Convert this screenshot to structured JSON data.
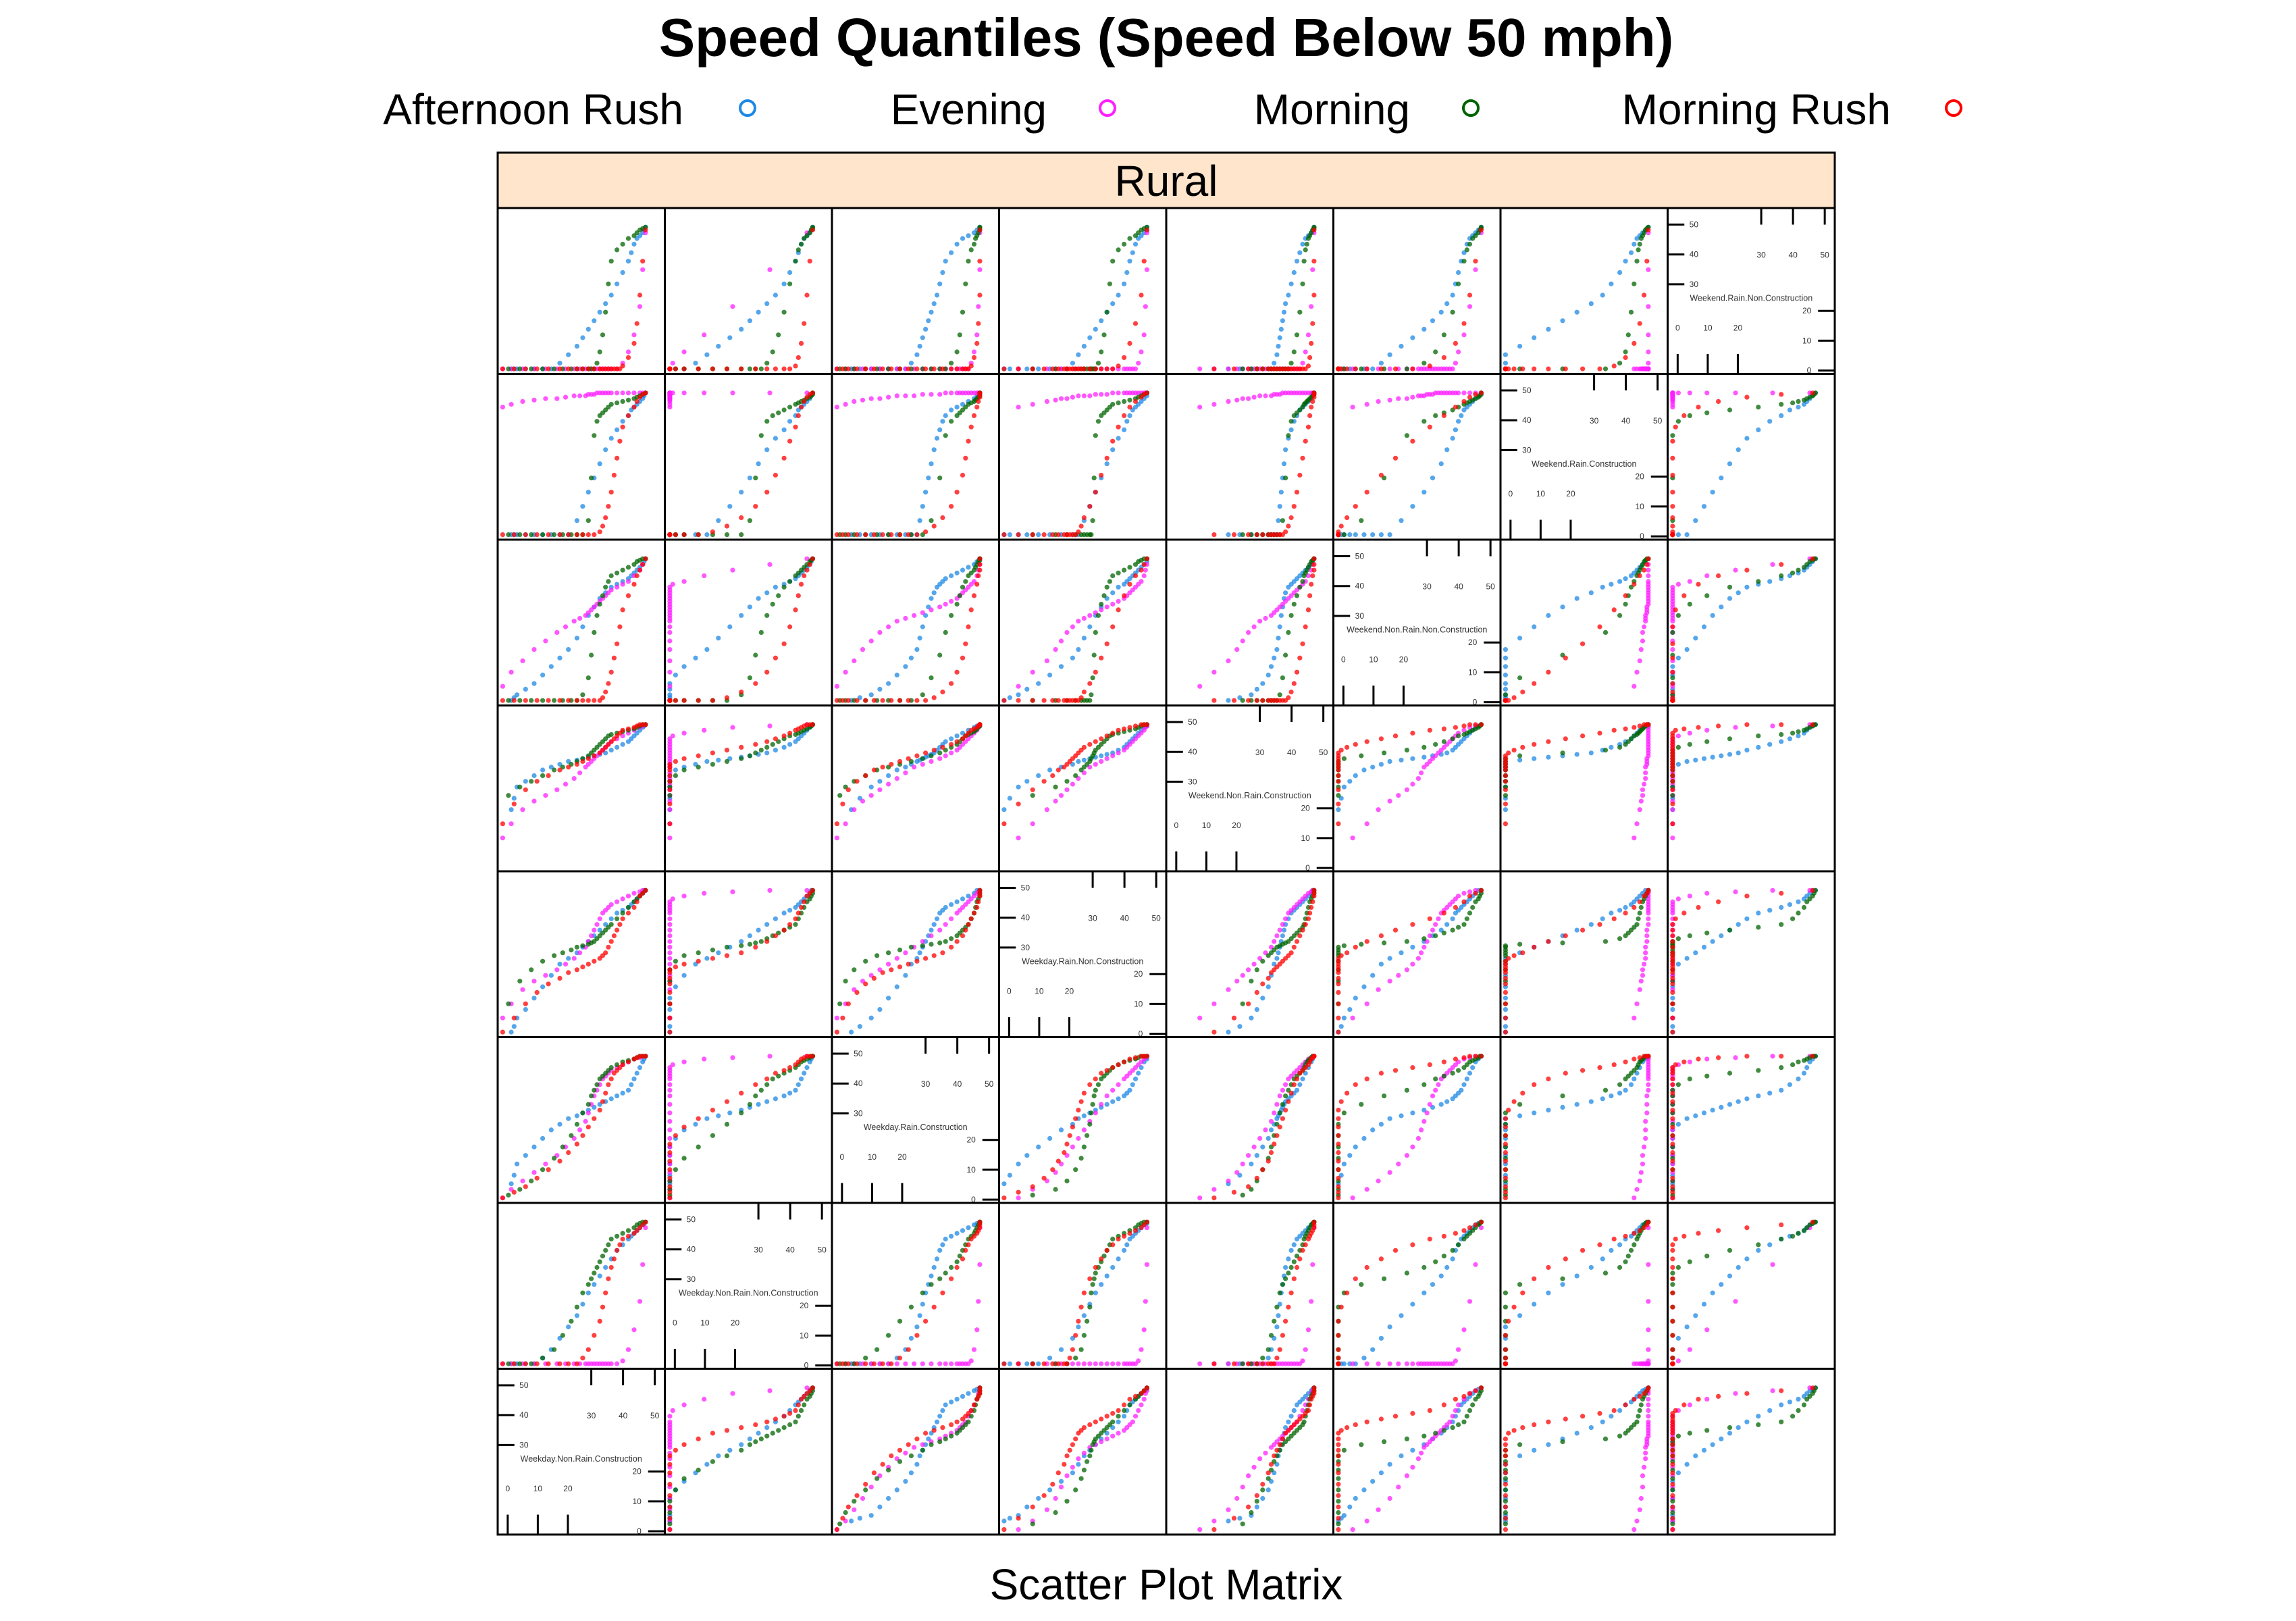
{
  "chart_data": {
    "type": "scatter",
    "title": "Speed Quantiles (Speed Below 50 mph)",
    "xlabel": "Scatter Plot Matrix",
    "strip_label": "Rural",
    "legend_placement": "top",
    "axis_range": [
      0,
      55
    ],
    "diag_ticks": [
      {
        "label": "50",
        "value": 50
      },
      {
        "label": "40",
        "value": 40
      },
      {
        "label": "30",
        "value": 30
      },
      {
        "label": "20",
        "value": 20
      },
      {
        "label": "10",
        "value": 10
      },
      {
        "label": "0",
        "value": 0
      }
    ],
    "variables": [
      "Weekday.Non.Rain.Construction",
      "Weekday.Non.Rain.Non.Construction",
      "Weekday.Rain.Construction",
      "Weekday.Rain.Non.Construction",
      "Weekend.Non.Rain.Construction",
      "Weekend.Non.Rain.Non.Construction",
      "Weekend.Rain.Construction",
      "Weekend.Rain.Non.Construction"
    ],
    "series": [
      {
        "name": "Afternoon Rush",
        "color": "#1e88e5"
      },
      {
        "name": "Evening",
        "color": "#ff1fff"
      },
      {
        "name": "Morning",
        "color": "#006400"
      },
      {
        "name": "Morning Rush",
        "color": "#ff0000"
      }
    ],
    "quantile_probs": [
      0.01,
      0.04,
      0.08,
      0.12,
      0.16,
      0.2,
      0.24,
      0.28,
      0.32,
      0.36,
      0.4,
      0.44,
      0.48,
      0.52,
      0.56,
      0.6,
      0.64,
      0.68,
      0.72,
      0.76,
      0.8,
      0.84,
      0.88,
      0.92,
      0.96,
      0.99
    ],
    "quantiles": {
      "Afternoon Rush": [
        [
          3,
          4,
          5,
          8,
          11,
          14,
          17,
          20,
          23,
          26,
          28,
          30,
          32,
          34,
          36,
          38,
          40,
          42,
          44,
          45,
          46,
          47,
          48,
          49,
          49.5,
          50
        ],
        [
          0,
          0,
          0,
          0,
          0,
          2,
          5,
          9,
          13,
          17,
          21,
          25,
          28,
          31,
          34,
          37,
          40,
          42,
          44,
          45,
          46,
          47,
          48,
          49,
          49.5,
          50
        ],
        [
          5,
          8,
          12,
          15,
          18,
          21,
          24,
          26,
          28,
          29,
          30,
          31,
          32,
          33,
          34,
          35,
          36,
          37,
          38,
          40,
          42,
          44,
          46,
          48,
          49,
          50
        ],
        [
          0,
          2,
          5,
          8,
          12,
          16,
          20,
          24,
          26,
          28,
          30,
          32,
          34,
          36,
          38,
          40,
          42,
          43,
          44,
          45,
          46,
          47,
          48,
          49,
          50,
          50
        ],
        [
          20,
          24,
          28,
          30,
          32,
          34,
          35,
          36,
          37,
          37.5,
          38,
          38.5,
          39,
          39.5,
          40,
          41,
          42,
          43,
          44,
          45,
          46,
          47,
          48,
          49,
          49.5,
          50
        ],
        [
          0,
          1,
          2,
          4,
          6,
          9,
          12,
          15,
          18,
          22,
          26,
          30,
          33,
          36,
          38,
          40,
          41,
          42,
          43,
          44,
          45,
          46,
          47,
          48,
          49,
          50
        ],
        [
          0,
          0,
          0,
          0,
          0,
          0,
          0,
          0,
          0,
          5,
          10,
          15,
          20,
          25,
          30,
          34,
          37,
          40,
          42,
          44,
          45,
          46,
          47,
          48,
          49,
          50
        ],
        [
          0,
          0,
          0,
          0,
          0,
          0,
          0,
          2,
          5,
          8,
          11,
          14,
          17,
          20,
          23,
          26,
          30,
          34,
          38,
          41,
          44,
          46,
          47,
          48,
          49,
          50
        ]
      ],
      "Evening": [
        [
          0,
          3,
          7,
          11,
          15,
          19,
          22,
          25,
          27,
          29,
          30,
          31,
          32,
          33,
          34,
          35,
          36,
          37,
          38,
          40,
          42,
          44,
          46,
          48,
          49,
          50
        ],
        [
          0,
          0,
          0,
          0,
          0,
          0,
          0,
          0,
          0,
          0,
          0,
          0,
          0,
          0,
          0,
          0,
          0,
          0,
          0,
          0,
          1,
          5,
          12,
          22,
          35,
          48
        ],
        [
          0,
          3,
          6,
          9,
          12,
          15,
          18,
          21,
          24,
          27,
          30,
          33,
          36,
          38,
          40,
          42,
          43,
          44,
          45,
          46,
          47,
          48,
          49,
          49.5,
          50,
          50
        ],
        [
          5,
          10,
          15,
          18,
          20,
          22,
          24,
          26,
          28,
          30,
          32,
          34,
          36,
          38,
          40,
          42,
          43,
          44,
          45,
          46,
          47,
          48,
          49,
          49.5,
          50,
          50
        ],
        [
          10,
          15,
          20,
          23,
          25,
          27,
          29,
          31,
          33,
          35,
          36,
          37,
          38,
          39,
          40,
          41,
          42,
          43,
          44,
          45,
          46,
          47,
          48,
          49,
          49.5,
          50
        ],
        [
          5,
          10,
          14,
          18,
          21,
          24,
          26,
          28,
          29,
          30,
          31,
          32,
          33,
          34,
          35,
          36,
          37,
          38,
          39,
          40,
          41,
          42,
          44,
          46,
          48,
          50
        ],
        [
          45,
          46,
          47,
          47.5,
          48,
          48,
          48.5,
          49,
          49,
          49,
          49.5,
          49.5,
          49.5,
          50,
          50,
          50,
          50,
          50,
          50,
          50,
          50,
          50,
          50,
          50,
          50,
          50
        ],
        [
          0,
          0,
          0,
          0,
          0,
          0,
          0,
          0,
          0,
          0,
          0,
          0,
          0,
          0,
          0,
          0,
          0,
          0,
          0,
          0,
          2,
          6,
          12,
          22,
          35,
          48
        ]
      ],
      "Morning": [
        [
          2,
          6,
          10,
          14,
          18,
          21,
          24,
          26,
          28,
          30,
          31,
          32,
          33,
          34,
          35,
          36,
          37,
          38,
          40,
          42,
          44,
          46,
          47,
          48,
          49,
          50
        ],
        [
          0,
          0,
          0,
          2,
          5,
          10,
          15,
          20,
          25,
          28,
          30,
          32,
          34,
          36,
          38,
          40,
          42,
          44,
          45,
          46,
          47,
          48,
          49,
          49.5,
          50,
          50
        ],
        [
          1,
          3,
          6,
          10,
          14,
          18,
          22,
          26,
          30,
          33,
          36,
          38,
          40,
          42,
          43,
          44,
          45,
          46,
          47,
          48,
          48.5,
          49,
          49.5,
          50,
          50,
          50
        ],
        [
          10,
          18,
          22,
          25,
          27,
          28,
          29,
          30,
          30.5,
          31,
          31.5,
          32,
          33,
          34,
          35,
          36,
          37,
          38,
          40,
          42,
          44,
          46,
          47,
          48,
          49,
          50
        ],
        [
          25,
          28,
          30,
          32,
          34,
          35,
          36,
          37,
          38,
          39,
          40,
          41,
          42,
          43,
          44,
          45,
          46,
          46.5,
          47,
          47.5,
          48,
          48.5,
          49,
          49.5,
          50,
          50
        ],
        [
          0,
          0,
          0,
          0,
          0,
          0,
          0,
          0,
          2,
          8,
          16,
          24,
          30,
          34,
          37,
          40,
          42,
          44,
          45,
          46,
          47,
          48,
          49,
          49.5,
          50,
          50
        ],
        [
          0,
          0,
          0,
          0,
          0,
          0,
          0,
          0,
          0,
          5,
          20,
          35,
          40,
          42,
          43,
          44,
          45,
          46,
          46.5,
          47,
          47.5,
          48,
          48.5,
          49,
          49.5,
          50
        ],
        [
          0,
          0,
          0,
          0,
          0,
          0,
          0,
          0,
          0,
          0,
          0,
          0,
          2,
          6,
          12,
          20,
          30,
          38,
          42,
          44,
          46,
          47,
          48,
          49,
          49.5,
          50
        ]
      ],
      "Morning Rush": [
        [
          0,
          4,
          8,
          12,
          16,
          20,
          23,
          26,
          28,
          30,
          32,
          34,
          35,
          36,
          37,
          38,
          39,
          40,
          41,
          42,
          44,
          46,
          47,
          48,
          49,
          50
        ],
        [
          0,
          0,
          0,
          0,
          0,
          0,
          0,
          0,
          2,
          5,
          10,
          15,
          20,
          25,
          30,
          34,
          37,
          40,
          42,
          44,
          45,
          46,
          47,
          48,
          49,
          50
        ],
        [
          0,
          2,
          4,
          7,
          10,
          13,
          16,
          19,
          22,
          25,
          28,
          31,
          34,
          37,
          40,
          42,
          44,
          45,
          46,
          47,
          48,
          49,
          49.5,
          50,
          50,
          50
        ],
        [
          0,
          5,
          10,
          14,
          17,
          19,
          21,
          22,
          23,
          24,
          25,
          26,
          27,
          28,
          30,
          32,
          34,
          36,
          38,
          40,
          42,
          44,
          46,
          48,
          49,
          50
        ],
        [
          15,
          22,
          27,
          30,
          32,
          34,
          35,
          36,
          37,
          38,
          39,
          40,
          41,
          42,
          43,
          44,
          45,
          46,
          47,
          48,
          48.5,
          49,
          49.5,
          50,
          50,
          50
        ],
        [
          0,
          0,
          0,
          0,
          0,
          0,
          0,
          0,
          0,
          0,
          0,
          0,
          1,
          3,
          6,
          10,
          15,
          20,
          26,
          32,
          37,
          41,
          44,
          46,
          48,
          50
        ],
        [
          0,
          0,
          0,
          0,
          0,
          0,
          0,
          0,
          0,
          0,
          0,
          1,
          3,
          6,
          10,
          15,
          21,
          27,
          33,
          38,
          42,
          45,
          47,
          48.5,
          49.5,
          50
        ],
        [
          0,
          0,
          0,
          0,
          0,
          0,
          0,
          0,
          0,
          0,
          0,
          0,
          0,
          0,
          0,
          0,
          0,
          0,
          0,
          1,
          4,
          9,
          16,
          26,
          38,
          49
        ]
      ]
    }
  }
}
